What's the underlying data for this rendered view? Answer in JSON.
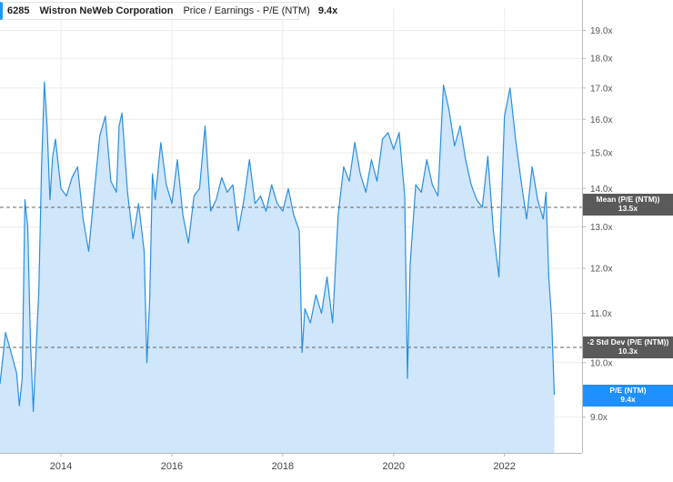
{
  "legend": {
    "ticker": "6285",
    "company": "Wistron NeWeb Corporation",
    "metric": "Price / Earnings - P/E (NTM)",
    "value": "9.4x"
  },
  "reference_labels": {
    "mean_title": "Mean (P/E (NTM))",
    "mean_value": "13.5x",
    "std_title": "-2 Std Dev (P/E (NTM))",
    "std_value": "10.3x",
    "pe_title": "P/E (NTM)",
    "pe_value": "9.4x"
  },
  "chart_data": {
    "type": "area",
    "title": "",
    "xlabel": "",
    "ylabel": "",
    "y_scale": "log",
    "ylim": [
      8.4,
      19.8
    ],
    "xlim": [
      2012.9,
      2023.4
    ],
    "x_ticks": [
      2014,
      2016,
      2018,
      2020,
      2022
    ],
    "x_tick_labels": [
      "2014",
      "2016",
      "2018",
      "2020",
      "2022"
    ],
    "y_ticks": [
      9,
      10,
      11,
      12,
      13,
      14,
      15,
      16,
      17,
      18,
      19
    ],
    "y_tick_labels": [
      "9.0x",
      "10.0x",
      "11.0x",
      "12.0x",
      "13.0x",
      "14.0x",
      "15.0x",
      "16.0x",
      "17.0x",
      "18.0x",
      "19.0x"
    ],
    "grid": true,
    "colors": {
      "line": "#2a8fe0",
      "fill": "#cfe6fb",
      "ref_line": "#666666",
      "pe_badge": "#1e90ff"
    },
    "reference_lines": [
      {
        "name": "Mean (P/E (NTM))",
        "value": 13.5
      },
      {
        "name": "-2 Std Dev (P/E (NTM))",
        "value": 10.3
      }
    ],
    "series": [
      {
        "name": "P/E (NTM)",
        "x": [
          2012.9,
          2013.0,
          2013.1,
          2013.2,
          2013.25,
          2013.3,
          2013.35,
          2013.4,
          2013.45,
          2013.5,
          2013.6,
          2013.65,
          2013.7,
          2013.75,
          2013.8,
          2013.85,
          2013.9,
          2014.0,
          2014.1,
          2014.2,
          2014.3,
          2014.4,
          2014.5,
          2014.6,
          2014.7,
          2014.8,
          2014.9,
          2015.0,
          2015.05,
          2015.1,
          2015.2,
          2015.3,
          2015.4,
          2015.5,
          2015.55,
          2015.6,
          2015.65,
          2015.7,
          2015.8,
          2015.9,
          2016.0,
          2016.1,
          2016.2,
          2016.3,
          2016.4,
          2016.5,
          2016.6,
          2016.7,
          2016.8,
          2016.9,
          2017.0,
          2017.1,
          2017.2,
          2017.3,
          2017.4,
          2017.5,
          2017.6,
          2017.7,
          2017.8,
          2017.9,
          2018.0,
          2018.1,
          2018.2,
          2018.3,
          2018.35,
          2018.4,
          2018.5,
          2018.6,
          2018.7,
          2018.8,
          2018.9,
          2019.0,
          2019.1,
          2019.2,
          2019.3,
          2019.4,
          2019.5,
          2019.6,
          2019.7,
          2019.8,
          2019.9,
          2020.0,
          2020.1,
          2020.2,
          2020.25,
          2020.3,
          2020.4,
          2020.5,
          2020.6,
          2020.7,
          2020.8,
          2020.9,
          2021.0,
          2021.1,
          2021.2,
          2021.3,
          2021.4,
          2021.5,
          2021.6,
          2021.7,
          2021.8,
          2021.9,
          2022.0,
          2022.1,
          2022.2,
          2022.3,
          2022.4,
          2022.5,
          2022.6,
          2022.7,
          2022.75,
          2022.8,
          2022.85,
          2022.9
        ],
        "values": [
          9.6,
          10.6,
          10.2,
          9.8,
          9.2,
          9.7,
          13.7,
          13.0,
          10.4,
          9.1,
          11.5,
          14.6,
          17.2,
          15.8,
          13.7,
          14.9,
          15.4,
          14.0,
          13.8,
          14.3,
          14.6,
          13.2,
          12.4,
          13.9,
          15.5,
          16.1,
          14.2,
          13.9,
          15.8,
          16.2,
          13.9,
          12.7,
          13.6,
          12.4,
          10.0,
          11.3,
          14.4,
          13.7,
          15.3,
          14.1,
          13.6,
          14.8,
          13.3,
          12.6,
          13.8,
          14.0,
          15.8,
          13.4,
          13.7,
          14.3,
          13.9,
          14.1,
          12.9,
          13.7,
          14.8,
          13.6,
          13.8,
          13.4,
          14.1,
          13.6,
          13.4,
          14.0,
          13.3,
          12.9,
          10.2,
          11.1,
          10.8,
          11.4,
          11.0,
          11.8,
          10.8,
          13.3,
          14.6,
          14.2,
          15.3,
          14.4,
          13.9,
          14.8,
          14.2,
          15.4,
          15.6,
          15.1,
          15.6,
          13.8,
          9.7,
          12.1,
          14.1,
          13.9,
          14.8,
          14.1,
          13.8,
          17.1,
          16.3,
          15.2,
          15.8,
          14.8,
          14.1,
          13.7,
          13.5,
          14.9,
          12.9,
          11.8,
          16.1,
          17.0,
          15.4,
          14.2,
          13.2,
          14.6,
          13.7,
          13.2,
          13.9,
          11.8,
          10.9,
          9.4
        ]
      }
    ]
  }
}
